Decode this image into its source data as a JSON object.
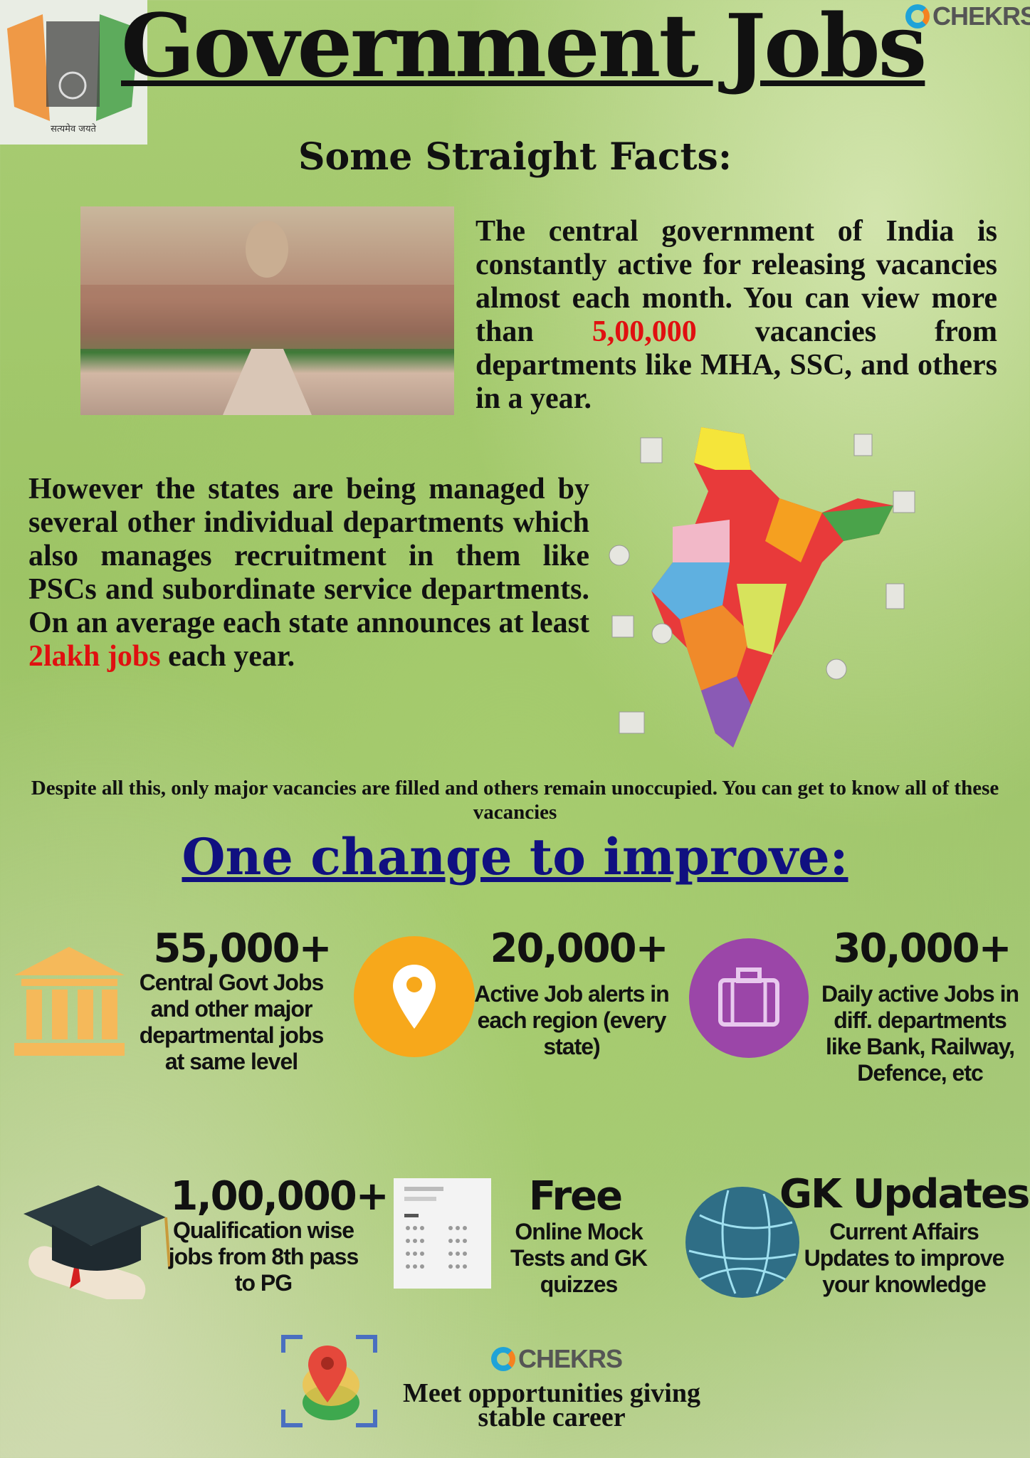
{
  "header": {
    "title": "Government Jobs",
    "brand": "CHEKRS",
    "emblem_motto": "सत्यमेव जयते"
  },
  "facts": {
    "heading": "Some Straight Facts:",
    "para1_before": "The central government of India is constantly active for releasing vacancies almost each month. You can view more than ",
    "para1_highlight": "5,00,000",
    "para1_after": " vacancies from departments like MHA, SSC, and others in a year.",
    "para2_before": "However the states are being managed by several other individual departments which also manages recruitment in them  like PSCs and subordinate service departments. On an average each state announces at least ",
    "para2_highlight": "2lakh jobs",
    "para2_after": " each year.",
    "highlight_color": "#e01010"
  },
  "despite": "Despite all this, only major vacancies are filled and others remain unoccupied.  You can get to know all of these vacancies",
  "improve": {
    "heading": "One change to improve:",
    "color": "#101080"
  },
  "stats": [
    {
      "number": "55,000+",
      "desc": "Central Govt Jobs and other major departmental jobs at same level",
      "icon": "bank-icon",
      "color": "#f5b95a"
    },
    {
      "number": "20,000+",
      "desc": "Active Job alerts in each region (every state)",
      "icon": "location-pin-icon",
      "color": "#f7a81b"
    },
    {
      "number": "30,000+",
      "desc": "Daily active Jobs in diff. departments like Bank, Railway, Defence, etc",
      "icon": "briefcase-icon",
      "color": "#9b46a8"
    },
    {
      "number": "1,00,000+",
      "desc": "Qualification wise jobs from 8th pass to PG",
      "icon": "graduation-cap-icon"
    },
    {
      "number": "Free",
      "desc": "Online Mock Tests and GK quizzes",
      "icon": "mock-test-sheet-icon"
    },
    {
      "number": "GK Updates",
      "desc": "Current Affairs Updates to improve your knowledge",
      "icon": "globe-icon",
      "color": "#2f6e86"
    }
  ],
  "footer": {
    "brand": "CHEKRS",
    "tagline": "Meet opportunities giving stable career"
  }
}
